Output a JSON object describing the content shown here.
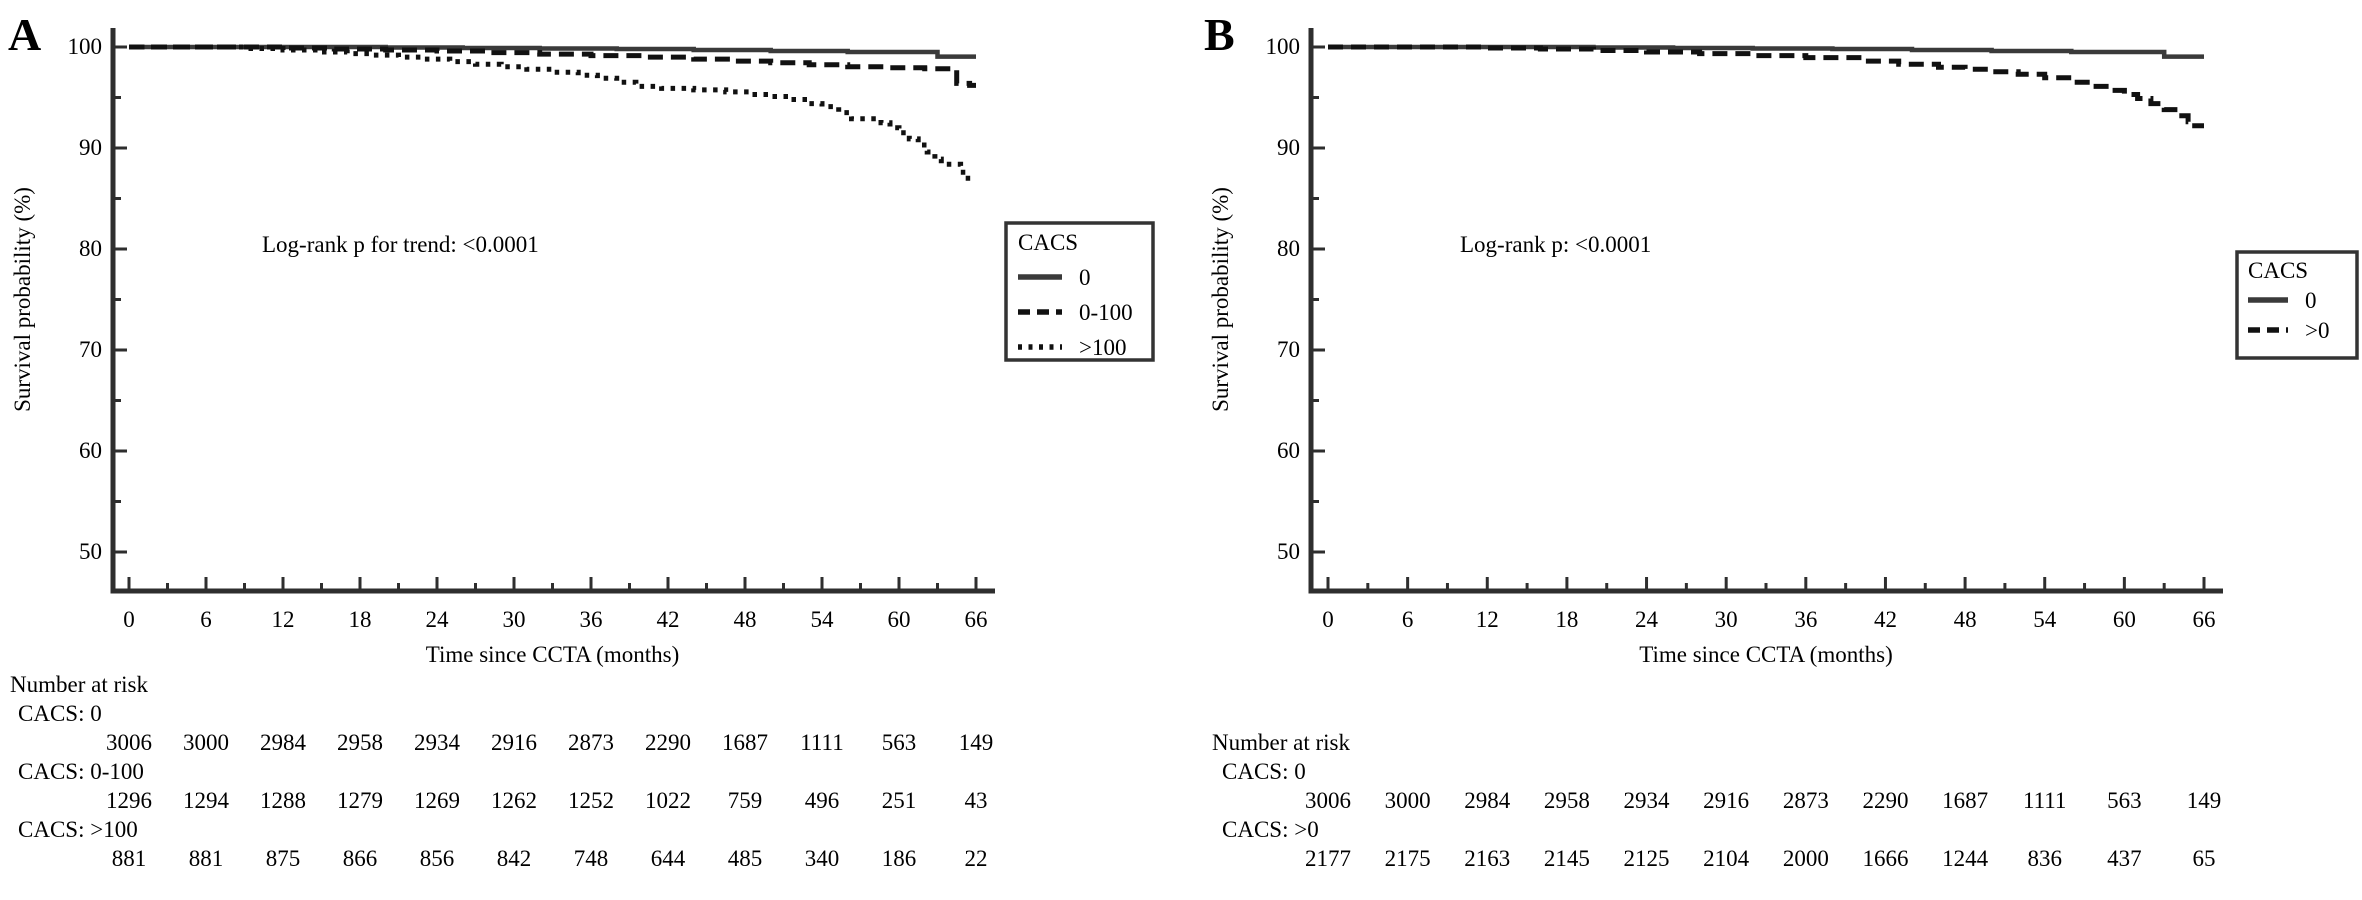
{
  "figure": {
    "background": "#ffffff",
    "text_color": "#000000",
    "curve_color": "#111111",
    "solid_curve_color": "#3a3a3a",
    "axis_color": "#2e2e2e"
  },
  "chart_data": [
    {
      "panel_label": "A",
      "type": "line",
      "subtype": "kaplan-meier-step-survival",
      "annotation": "Log-rank p for trend: <0.0001",
      "xlabel": "Time since CCTA (months)",
      "ylabel": "Survival probability (%)",
      "xlim": [
        0,
        67.5
      ],
      "ylim": [
        50,
        100
      ],
      "xticks": [
        0,
        6,
        12,
        18,
        24,
        30,
        36,
        42,
        48,
        54,
        60,
        66
      ],
      "x_minor_ticks": [
        3,
        9,
        15,
        21,
        27,
        33,
        39,
        45,
        51,
        57,
        63
      ],
      "yticks": [
        100,
        90,
        80,
        70,
        60,
        50
      ],
      "y_minor_ticks": [
        95,
        85,
        75,
        65,
        55
      ],
      "grid": false,
      "legend": {
        "title": "CACS",
        "position": "right-outside-upper",
        "entries": [
          {
            "label": "0",
            "line_style": "solid"
          },
          {
            "label": "0-100",
            "line_style": "dashed"
          },
          {
            "label": ">100",
            "line_style": "dotted"
          }
        ]
      },
      "series": [
        {
          "name": "CACS 0",
          "line_style": "solid",
          "step_points": [
            [
              0,
              100
            ],
            [
              20,
              99.95
            ],
            [
              26,
              99.9
            ],
            [
              32,
              99.85
            ],
            [
              38,
              99.8
            ],
            [
              44,
              99.7
            ],
            [
              50,
              99.6
            ],
            [
              56,
              99.5
            ],
            [
              63,
              99.05
            ],
            [
              66,
              99.05
            ]
          ]
        },
        {
          "name": "CACS 0-100",
          "line_style": "dashed",
          "step_points": [
            [
              0,
              100
            ],
            [
              12,
              99.9
            ],
            [
              16,
              99.8
            ],
            [
              20,
              99.7
            ],
            [
              24,
              99.6
            ],
            [
              28,
              99.45
            ],
            [
              32,
              99.3
            ],
            [
              36,
              99.15
            ],
            [
              40,
              99.0
            ],
            [
              44,
              98.8
            ],
            [
              47,
              98.6
            ],
            [
              50,
              98.45
            ],
            [
              53,
              98.25
            ],
            [
              56,
              98.05
            ],
            [
              59,
              97.95
            ],
            [
              62,
              97.85
            ],
            [
              64.5,
              96.4
            ],
            [
              65.5,
              96.2
            ],
            [
              66,
              96.2
            ]
          ]
        },
        {
          "name": "CACS >100",
          "line_style": "dotted",
          "step_points": [
            [
              0,
              100
            ],
            [
              9,
              99.85
            ],
            [
              12,
              99.7
            ],
            [
              15,
              99.5
            ],
            [
              17,
              99.35
            ],
            [
              19,
              99.2
            ],
            [
              21,
              99.0
            ],
            [
              23,
              98.8
            ],
            [
              25,
              98.55
            ],
            [
              27,
              98.3
            ],
            [
              29,
              98.05
            ],
            [
              31,
              97.8
            ],
            [
              33,
              97.5
            ],
            [
              35,
              97.2
            ],
            [
              36.5,
              96.9
            ],
            [
              38,
              96.5
            ],
            [
              39.5,
              96.1
            ],
            [
              41.5,
              95.9
            ],
            [
              44,
              95.75
            ],
            [
              46.5,
              95.55
            ],
            [
              48.5,
              95.3
            ],
            [
              50,
              95.1
            ],
            [
              51.5,
              94.8
            ],
            [
              53,
              94.4
            ],
            [
              54,
              94.1
            ],
            [
              55.3,
              93.5
            ],
            [
              56.3,
              92.9
            ],
            [
              58.6,
              92.5
            ],
            [
              59.3,
              92.0
            ],
            [
              60,
              91.5
            ],
            [
              60.8,
              90.9
            ],
            [
              61.5,
              90.3
            ],
            [
              62.2,
              89.6
            ],
            [
              62.8,
              88.9
            ],
            [
              63.3,
              88.4
            ],
            [
              64.8,
              87.6
            ],
            [
              65.2,
              87.0
            ],
            [
              66,
              87.0
            ]
          ]
        }
      ],
      "risk_table": {
        "title": "Number at risk",
        "months": [
          0,
          6,
          12,
          18,
          24,
          30,
          36,
          42,
          48,
          54,
          60,
          66
        ],
        "rows": [
          {
            "label": "CACS: 0",
            "values": [
              3006,
              3000,
              2984,
              2958,
              2934,
              2916,
              2873,
              2290,
              1687,
              1111,
              563,
              149
            ]
          },
          {
            "label": "CACS: 0-100",
            "values": [
              1296,
              1294,
              1288,
              1279,
              1269,
              1262,
              1252,
              1022,
              759,
              496,
              251,
              43
            ]
          },
          {
            "label": "CACS: >100",
            "values": [
              881,
              881,
              875,
              866,
              856,
              842,
              748,
              644,
              485,
              340,
              186,
              22
            ]
          }
        ]
      }
    },
    {
      "panel_label": "B",
      "type": "line",
      "subtype": "kaplan-meier-step-survival",
      "annotation": "Log-rank p: <0.0001",
      "xlabel": "Time since CCTA (months)",
      "ylabel": "Survival probability (%)",
      "xlim": [
        0,
        67.5
      ],
      "ylim": [
        50,
        100
      ],
      "xticks": [
        0,
        6,
        12,
        18,
        24,
        30,
        36,
        42,
        48,
        54,
        60,
        66
      ],
      "x_minor_ticks": [
        3,
        9,
        15,
        21,
        27,
        33,
        39,
        45,
        51,
        57,
        63
      ],
      "yticks": [
        100,
        90,
        80,
        70,
        60,
        50
      ],
      "y_minor_ticks": [
        95,
        85,
        75,
        65,
        55
      ],
      "grid": false,
      "legend": {
        "title": "CACS",
        "position": "right-outside-upper",
        "entries": [
          {
            "label": "0",
            "line_style": "solid"
          },
          {
            "label": ">0",
            "line_style": "dashed"
          }
        ]
      },
      "series": [
        {
          "name": "CACS 0",
          "line_style": "solid",
          "step_points": [
            [
              0,
              100
            ],
            [
              20,
              99.95
            ],
            [
              26,
              99.9
            ],
            [
              32,
              99.85
            ],
            [
              38,
              99.8
            ],
            [
              44,
              99.7
            ],
            [
              50,
              99.6
            ],
            [
              56,
              99.5
            ],
            [
              63,
              99.05
            ],
            [
              66,
              99.05
            ]
          ]
        },
        {
          "name": "CACS >0",
          "line_style": "dashed",
          "step_points": [
            [
              0,
              100
            ],
            [
              12,
              99.9
            ],
            [
              16,
              99.8
            ],
            [
              20,
              99.65
            ],
            [
              24,
              99.5
            ],
            [
              28,
              99.35
            ],
            [
              32,
              99.15
            ],
            [
              36,
              98.95
            ],
            [
              40,
              98.6
            ],
            [
              43,
              98.3
            ],
            [
              46,
              98.0
            ],
            [
              48,
              97.8
            ],
            [
              50,
              97.55
            ],
            [
              52,
              97.3
            ],
            [
              54,
              96.95
            ],
            [
              56,
              96.5
            ],
            [
              57.5,
              96.1
            ],
            [
              59,
              95.7
            ],
            [
              60,
              95.3
            ],
            [
              61,
              94.9
            ],
            [
              62,
              94.4
            ],
            [
              63,
              93.8
            ],
            [
              64,
              93.2
            ],
            [
              64.8,
              92.6
            ],
            [
              65.3,
              92.2
            ],
            [
              66,
              92.2
            ]
          ]
        }
      ],
      "risk_table": {
        "title": "Number at risk",
        "months": [
          0,
          6,
          12,
          18,
          24,
          30,
          36,
          42,
          48,
          54,
          60,
          66
        ],
        "rows": [
          {
            "label": "CACS: 0",
            "values": [
              3006,
              3000,
              2984,
              2958,
              2934,
              2916,
              2873,
              2290,
              1687,
              1111,
              563,
              149
            ]
          },
          {
            "label": "CACS: >0",
            "values": [
              2177,
              2175,
              2163,
              2145,
              2125,
              2104,
              2000,
              1666,
              1244,
              836,
              437,
              65
            ]
          }
        ]
      }
    }
  ]
}
